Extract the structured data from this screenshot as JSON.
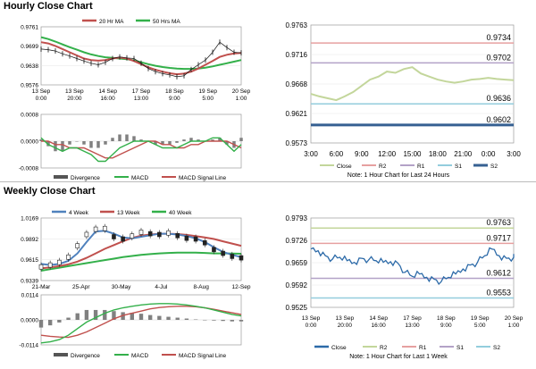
{
  "titles": {
    "hourly": "Hourly Close Chart",
    "weekly": "Weekly Close Chart"
  },
  "colors": {
    "close_green": "#c3d69b",
    "r2": "#e6a0a0",
    "r1": "#b3a2c7",
    "s1": "#93cddd",
    "s2": "#366092",
    "ma_fast": "#4f81bd",
    "ma_mid": "#c0504d",
    "ma_slow": "#33b04a",
    "macd": "#33b04a",
    "signal": "#c0504d",
    "hist": "#808080",
    "series_blue": "#2c6aa8"
  },
  "chart_data": [
    {
      "id": "hourly_price",
      "type": "line",
      "legend": [
        "20 Hr MA",
        "50 Hrs MA"
      ],
      "y_ticks": [
        "0.9761",
        "0.9699",
        "0.9638",
        "0.9576"
      ],
      "x_ticks": [
        [
          "13 Sep",
          "0:00"
        ],
        [
          "13 Sep",
          "20:00"
        ],
        [
          "14 Sep",
          "16:00"
        ],
        [
          "17 Sep",
          "13:00"
        ],
        [
          "18 Sep",
          "9:00"
        ],
        [
          "19 Sep",
          "5:00"
        ],
        [
          "20 Sep",
          "1:00"
        ]
      ],
      "ylim": [
        0.9576,
        0.9761
      ],
      "close": [
        0.969,
        0.9688,
        0.9684,
        0.9675,
        0.9668,
        0.966,
        0.9652,
        0.9645,
        0.964,
        0.9648,
        0.966,
        0.9665,
        0.9662,
        0.966,
        0.9645,
        0.9628,
        0.9618,
        0.9612,
        0.9608,
        0.9602,
        0.9605,
        0.9625,
        0.964,
        0.9655,
        0.968,
        0.9712,
        0.9695,
        0.968,
        0.9678
      ],
      "ma20": [
        0.9712,
        0.9708,
        0.97,
        0.969,
        0.968,
        0.967,
        0.966,
        0.9655,
        0.9653,
        0.9655,
        0.966,
        0.9663,
        0.966,
        0.9652,
        0.9642,
        0.9632,
        0.9624,
        0.9618,
        0.9613,
        0.961,
        0.9612,
        0.9618,
        0.9628,
        0.964,
        0.9652,
        0.9665,
        0.9672,
        0.9676,
        0.9678
      ],
      "ma50": [
        0.9728,
        0.9722,
        0.9714,
        0.9705,
        0.9696,
        0.9688,
        0.968,
        0.9673,
        0.9668,
        0.9664,
        0.9662,
        0.966,
        0.9658,
        0.9654,
        0.9648,
        0.9642,
        0.9637,
        0.9633,
        0.963,
        0.9628,
        0.9627,
        0.9627,
        0.9628,
        0.9631,
        0.9635,
        0.964,
        0.9645,
        0.965,
        0.9655
      ]
    },
    {
      "id": "hourly_macd",
      "type": "line",
      "legend": [
        "Divergence",
        "MACD",
        "MACD Signal Line"
      ],
      "y_ticks": [
        "0.0008",
        "0.0000",
        "-0.0008"
      ],
      "ylim": [
        -0.0008,
        0.0008
      ],
      "macd": [
        0.0001,
        -0.0001,
        -0.0002,
        -0.0003,
        -0.0002,
        -0.0002,
        -0.0003,
        -0.0004,
        -0.0006,
        -0.0006,
        -0.0004,
        -0.0002,
        -0.0001,
        0.0,
        0.0,
        0.0,
        -0.0001,
        -0.0002,
        -0.0002,
        -0.0002,
        -0.0001,
        0.0,
        0.0,
        0.0,
        0.0001,
        0.0001,
        -0.0001,
        -0.0003,
        -0.0001
      ],
      "signal": [
        0.0,
        0.0,
        -0.0001,
        -0.0001,
        -0.0002,
        -0.0002,
        -0.0002,
        -0.0003,
        -0.0004,
        -0.0005,
        -0.0005,
        -0.0004,
        -0.0003,
        -0.0002,
        -0.0001,
        0.0,
        0.0,
        -0.0001,
        -0.0001,
        -0.0002,
        -0.0002,
        -0.0001,
        -0.0001,
        0.0,
        0.0,
        0.0,
        0.0,
        -0.0001,
        -0.0002
      ],
      "divergence": [
        5e-05,
        -0.00015,
        -0.0003,
        -0.0003,
        -0.0001,
        0.0,
        -0.0001,
        -0.0002,
        -0.0002,
        -0.0001,
        0.0001,
        0.0002,
        0.0002,
        0.00015,
        5e-05,
        0.0,
        -0.0001,
        -0.0001,
        -0.0001,
        -5e-05,
        5e-05,
        0.0001,
        5e-05,
        0.0,
        5e-05,
        0.0001,
        -0.0001,
        -0.0002,
        0.0001
      ]
    },
    {
      "id": "hourly_24h",
      "type": "line",
      "legend": [
        "Close",
        "R2",
        "R1",
        "S1",
        "S2"
      ],
      "note": "Note: 1 Hour Chart for Last 24 Hours",
      "y_ticks": [
        "0.9763",
        "0.9716",
        "0.9668",
        "0.9621",
        "0.9573"
      ],
      "x_ticks": [
        "3:00",
        "6:00",
        "9:00",
        "12:00",
        "15:00",
        "18:00",
        "21:00",
        "0:00",
        "3:00"
      ],
      "ylim": [
        0.9573,
        0.9763
      ],
      "close": [
        0.9652,
        0.9648,
        0.9645,
        0.9642,
        0.9648,
        0.9655,
        0.9665,
        0.9675,
        0.968,
        0.9688,
        0.9686,
        0.9692,
        0.9695,
        0.9685,
        0.968,
        0.9675,
        0.9672,
        0.967,
        0.9672,
        0.9675,
        0.9676,
        0.9678,
        0.9676,
        0.9675,
        0.9674
      ],
      "levels": [
        {
          "name": "R2",
          "value": 0.9734,
          "label": "0.9734"
        },
        {
          "name": "R1",
          "value": 0.9702,
          "label": "0.9702"
        },
        {
          "name": "S1",
          "value": 0.9636,
          "label": "0.9636"
        },
        {
          "name": "S2",
          "value": 0.9602,
          "label": "0.9602"
        }
      ]
    },
    {
      "id": "weekly_price",
      "type": "line",
      "legend": [
        "4 Week",
        "13 Week",
        "40 Week"
      ],
      "y_ticks": [
        "1.0169",
        "0.9892",
        "0.9615",
        "0.9339"
      ],
      "x_ticks": [
        "21-Mar",
        "25-Apr",
        "30-May",
        "4-Jul",
        "8-Aug",
        "12-Sep"
      ],
      "ylim": [
        0.9339,
        1.0169
      ],
      "close": [
        0.952,
        0.9545,
        0.958,
        0.965,
        0.98,
        0.995,
        1.002,
        1.003,
        0.992,
        0.989,
        0.993,
        0.998,
        0.996,
        0.995,
        0.997,
        0.9935,
        0.99,
        0.989,
        0.984,
        0.975,
        0.97,
        0.966,
        0.964
      ],
      "ma4": [
        0.956,
        0.9545,
        0.956,
        0.96,
        0.97,
        0.985,
        0.999,
        1.0,
        0.996,
        0.991,
        0.99,
        0.992,
        0.994,
        0.996,
        0.996,
        0.995,
        0.993,
        0.99,
        0.985,
        0.978,
        0.972,
        0.968,
        0.965
      ],
      "ma13": [
        0.95,
        0.9515,
        0.953,
        0.9555,
        0.959,
        0.964,
        0.97,
        0.976,
        0.981,
        0.986,
        0.9905,
        0.9935,
        0.995,
        0.996,
        0.996,
        0.9955,
        0.9945,
        0.993,
        0.991,
        0.989,
        0.986,
        0.983,
        0.98
      ],
      "ma40": [
        0.947,
        0.949,
        0.951,
        0.953,
        0.955,
        0.957,
        0.959,
        0.961,
        0.963,
        0.965,
        0.9665,
        0.968,
        0.969,
        0.97,
        0.9705,
        0.971,
        0.971,
        0.971,
        0.9705,
        0.97,
        0.97,
        0.9698,
        0.9695
      ]
    },
    {
      "id": "weekly_macd",
      "type": "line",
      "legend": [
        "Divergence",
        "MACD",
        "MACD Signal Line"
      ],
      "y_ticks": [
        "0.0114",
        "0.0000",
        "-0.0114"
      ],
      "ylim": [
        -0.0114,
        0.0114
      ],
      "macd": [
        -0.0105,
        -0.01,
        -0.009,
        -0.007,
        -0.004,
        -0.001,
        0.001,
        0.003,
        0.0045,
        0.0055,
        0.0062,
        0.0068,
        0.0072,
        0.0074,
        0.0074,
        0.0072,
        0.0068,
        0.0062,
        0.0055,
        0.0045,
        0.0035,
        0.0025,
        0.0018
      ],
      "signal": [
        -0.007,
        -0.0075,
        -0.0078,
        -0.008,
        -0.007,
        -0.0055,
        -0.0035,
        -0.0015,
        0.0005,
        0.002,
        0.003,
        0.004,
        0.005,
        0.0056,
        0.006,
        0.0062,
        0.0062,
        0.006,
        0.0055,
        0.0048,
        0.004,
        0.0032,
        0.0025
      ],
      "divergence": [
        -0.0035,
        -0.0025,
        -0.0012,
        0.001,
        0.003,
        0.0045,
        0.0045,
        0.0045,
        0.004,
        0.0035,
        0.0032,
        0.0028,
        0.0022,
        0.0018,
        0.0014,
        0.001,
        0.0006,
        0.0002,
        0.0,
        -0.0003,
        -0.0005,
        -0.0007,
        -0.0007
      ]
    },
    {
      "id": "weekly_hourly",
      "type": "line",
      "legend": [
        "Close",
        "R2",
        "R1",
        "S1",
        "S2"
      ],
      "note": "Note: 1 Hour Chart for Last 1 Week",
      "y_ticks": [
        "0.9793",
        "0.9726",
        "0.9659",
        "0.9592",
        "0.9525"
      ],
      "x_ticks": [
        [
          "13 Sep",
          "0:00"
        ],
        [
          "13 Sep",
          "20:00"
        ],
        [
          "14 Sep",
          "16:00"
        ],
        [
          "17 Sep",
          "13:00"
        ],
        [
          "18 Sep",
          "9:00"
        ],
        [
          "19 Sep",
          "5:00"
        ],
        [
          "20 Sep",
          "1:00"
        ]
      ],
      "ylim": [
        0.9525,
        0.9793
      ],
      "close": [
        0.97,
        0.9695,
        0.968,
        0.967,
        0.9675,
        0.9665,
        0.966,
        0.9672,
        0.9668,
        0.9665,
        0.966,
        0.9662,
        0.9658,
        0.963,
        0.9618,
        0.9625,
        0.9615,
        0.961,
        0.9602,
        0.9615,
        0.9625,
        0.964,
        0.9652,
        0.966,
        0.968,
        0.97,
        0.968,
        0.9672,
        0.9675
      ],
      "levels": [
        {
          "name": "R2",
          "value": 0.9763,
          "label": "0.9763"
        },
        {
          "name": "R1",
          "value": 0.9717,
          "label": "0.9717"
        },
        {
          "name": "S1",
          "value": 0.9612,
          "label": "0.9612"
        },
        {
          "name": "S2",
          "value": 0.9553,
          "label": "0.9553"
        }
      ]
    }
  ]
}
